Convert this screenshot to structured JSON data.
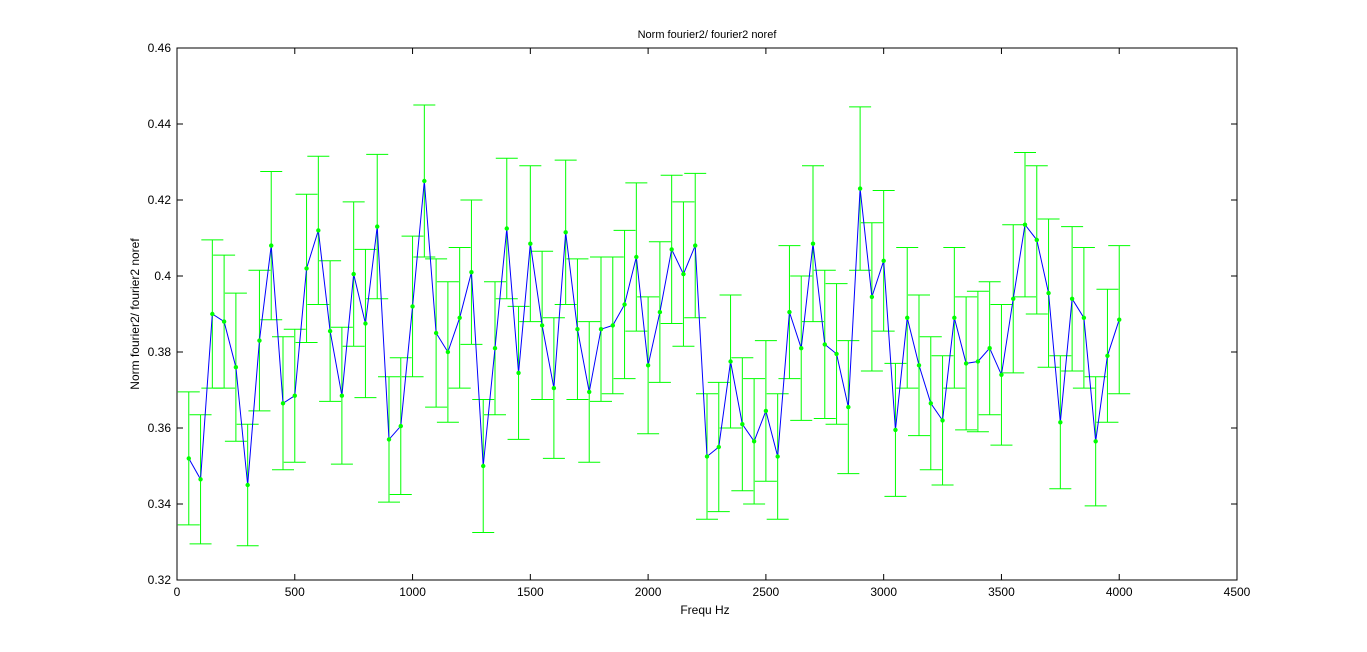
{
  "chart_data": {
    "type": "line",
    "title": "Norm fourier2/ fourier2 noref",
    "xlabel": "Frequ Hz",
    "ylabel": "Norm fourier2/ fourier2 noref",
    "xlim": [
      0,
      4500
    ],
    "ylim": [
      0.32,
      0.46
    ],
    "xticks": [
      0,
      500,
      1000,
      1500,
      2000,
      2500,
      3000,
      3500,
      4000,
      4500
    ],
    "xtick_labels": [
      "0",
      "500",
      "1000",
      "1500",
      "2000",
      "2500",
      "3000",
      "3500",
      "4000",
      "4500"
    ],
    "yticks": [
      0.32,
      0.34,
      0.36,
      0.38,
      0.4,
      0.42,
      0.44,
      0.46
    ],
    "ytick_labels": [
      "0.32",
      "0.34",
      "0.36",
      "0.38",
      "0.4",
      "0.42",
      "0.44",
      "0.46"
    ],
    "grid": false,
    "line_color": "#0000ff",
    "errorbar_color": "#00ff00",
    "marker_color": "#00ff00",
    "series": [
      {
        "x": [
          50,
          100,
          150,
          200,
          250,
          300,
          350,
          400,
          450,
          500,
          550,
          600,
          650,
          700,
          750,
          800,
          850,
          900,
          950,
          1000,
          1050,
          1100,
          1150,
          1200,
          1250,
          1300,
          1350,
          1400,
          1450,
          1500,
          1550,
          1600,
          1650,
          1700,
          1750,
          1800,
          1850,
          1900,
          1950,
          2000,
          2050,
          2100,
          2150,
          2200,
          2250,
          2300,
          2350,
          2400,
          2450,
          2500,
          2550,
          2600,
          2650,
          2700,
          2750,
          2800,
          2850,
          2900,
          2950,
          3000,
          3050,
          3100,
          3150,
          3200,
          3250,
          3300,
          3350,
          3400,
          3450,
          3500,
          3550,
          3600,
          3650,
          3700,
          3750,
          3800,
          3850,
          3900,
          3950,
          4000
        ],
        "y": [
          0.352,
          0.3465,
          0.39,
          0.388,
          0.376,
          0.345,
          0.383,
          0.408,
          0.3665,
          0.3685,
          0.402,
          0.412,
          0.3855,
          0.3685,
          0.4005,
          0.3875,
          0.413,
          0.357,
          0.3605,
          0.392,
          0.425,
          0.385,
          0.38,
          0.389,
          0.401,
          0.35,
          0.381,
          0.4125,
          0.3745,
          0.4085,
          0.387,
          0.3705,
          0.4115,
          0.386,
          0.3695,
          0.386,
          0.387,
          0.3925,
          0.405,
          0.3765,
          0.3905,
          0.407,
          0.4005,
          0.408,
          0.3525,
          0.355,
          0.3775,
          0.361,
          0.3565,
          0.3645,
          0.3525,
          0.3905,
          0.381,
          0.4085,
          0.382,
          0.3795,
          0.3655,
          0.423,
          0.3945,
          0.404,
          0.3595,
          0.389,
          0.3765,
          0.3665,
          0.362,
          0.389,
          0.377,
          0.3775,
          0.381,
          0.374,
          0.394,
          0.4135,
          0.4095,
          0.3955,
          0.3615,
          0.394,
          0.389,
          0.3565,
          0.379,
          0.3885
        ],
        "err": [
          0.0175,
          0.017,
          0.0195,
          0.0175,
          0.0195,
          0.016,
          0.0185,
          0.0195,
          0.0175,
          0.0175,
          0.0195,
          0.0195,
          0.0185,
          0.018,
          0.019,
          0.0195,
          0.019,
          0.0165,
          0.018,
          0.0185,
          0.02,
          0.0195,
          0.0185,
          0.0185,
          0.019,
          0.0175,
          0.0175,
          0.0185,
          0.0175,
          0.0205,
          0.0195,
          0.0185,
          0.019,
          0.0185,
          0.0185,
          0.019,
          0.018,
          0.0195,
          0.0195,
          0.018,
          0.0185,
          0.0195,
          0.019,
          0.019,
          0.0165,
          0.017,
          0.0175,
          0.0175,
          0.0165,
          0.0185,
          0.0165,
          0.0175,
          0.019,
          0.0205,
          0.0195,
          0.0185,
          0.0175,
          0.0215,
          0.0195,
          0.0185,
          0.0175,
          0.0185,
          0.0185,
          0.0175,
          0.017,
          0.0185,
          0.0175,
          0.0185,
          0.0175,
          0.0185,
          0.0195,
          0.019,
          0.0195,
          0.0195,
          0.0175,
          0.019,
          0.0185,
          0.017,
          0.0175,
          0.0195
        ]
      }
    ]
  }
}
